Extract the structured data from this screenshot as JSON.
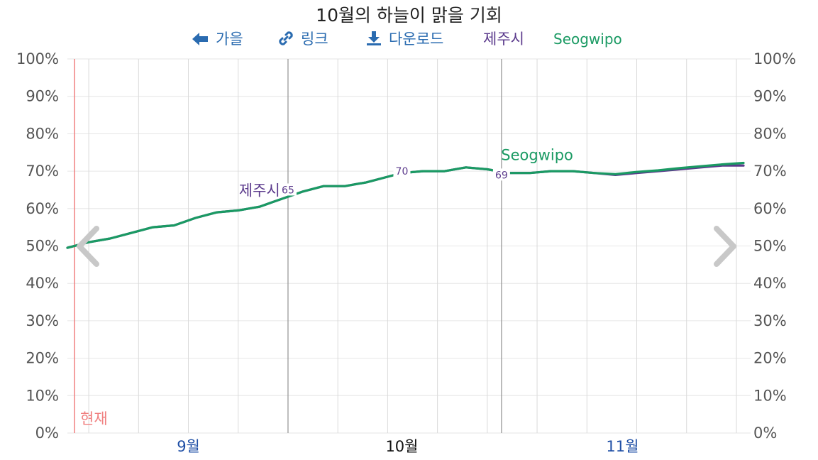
{
  "title": "10월의 하늘이 맑을 기회",
  "toolbar": {
    "back_label": "가을",
    "link_label": "링크",
    "download_label": "다운로드",
    "series_a_label": "제주시",
    "series_b_label": "Seogwipo"
  },
  "colors": {
    "series_a": "#5b3a8c",
    "series_b": "#1a9a63",
    "link": "#2a6bb0",
    "now_line": "#f08080",
    "month_label": "#1f4fa6"
  },
  "icons": {
    "back": "arrow-left-icon",
    "link": "link-icon",
    "download": "download-icon",
    "prev": "chevron-left-icon",
    "next": "chevron-right-icon"
  },
  "chart_data": {
    "type": "line",
    "title": "10월의 하늘이 맑을 기회",
    "xlim": [
      "08-15",
      "11-19"
    ],
    "ylim": [
      0,
      100
    ],
    "y_ticks": [
      "0%",
      "10%",
      "20%",
      "30%",
      "40%",
      "50%",
      "60%",
      "70%",
      "80%",
      "90%",
      "100%"
    ],
    "x_ticks": [
      {
        "date": "09-01",
        "label": "9월"
      },
      {
        "date": "10-01",
        "label": "10월",
        "current": true
      },
      {
        "date": "11-01",
        "label": "11월"
      }
    ],
    "bounds": [
      "09-15",
      "10-15"
    ],
    "now": {
      "date": "08-16",
      "label": "현재"
    },
    "x": [
      "08-15",
      "08-18",
      "08-21",
      "08-24",
      "08-27",
      "08-30",
      "09-02",
      "09-05",
      "09-08",
      "09-11",
      "09-14",
      "09-17",
      "09-20",
      "09-23",
      "09-26",
      "09-29",
      "10-01",
      "10-04",
      "10-07",
      "10-10",
      "10-13",
      "10-16",
      "10-19",
      "10-22",
      "10-25",
      "10-28",
      "10-31",
      "11-03",
      "11-06",
      "11-09",
      "11-12",
      "11-15",
      "11-18"
    ],
    "series": [
      {
        "name": "제주시",
        "values": [
          49.5,
          51,
          52,
          53.5,
          55,
          55.5,
          57.5,
          59,
          59.5,
          60.5,
          62.5,
          64.5,
          66,
          66,
          67,
          68.5,
          69.5,
          70,
          70,
          71,
          70.5,
          69.5,
          69.5,
          70,
          70,
          69.5,
          69,
          69.5,
          70,
          70.5,
          71,
          71.5,
          71.5
        ]
      },
      {
        "name": "Seogwipo",
        "values": [
          49.5,
          51,
          52,
          53.5,
          55,
          55.5,
          57.5,
          59,
          59.5,
          60.5,
          62.5,
          64.5,
          66,
          66,
          67,
          68.5,
          69.5,
          70,
          70,
          71,
          70.5,
          69.5,
          69.5,
          70,
          70,
          69.5,
          69.2,
          69.8,
          70.2,
          70.8,
          71.3,
          71.8,
          72.2
        ]
      }
    ],
    "annotations": [
      {
        "date": "09-15",
        "value": 65,
        "text": "65"
      },
      {
        "date": "10-01",
        "value": 70,
        "text": "70"
      },
      {
        "date": "10-15",
        "value": 69,
        "text": "69"
      }
    ],
    "series_labels": [
      {
        "series": "제주시",
        "date": "09-11",
        "value": 63.5
      },
      {
        "series": "Seogwipo",
        "date": "10-20",
        "value": 73
      }
    ]
  }
}
